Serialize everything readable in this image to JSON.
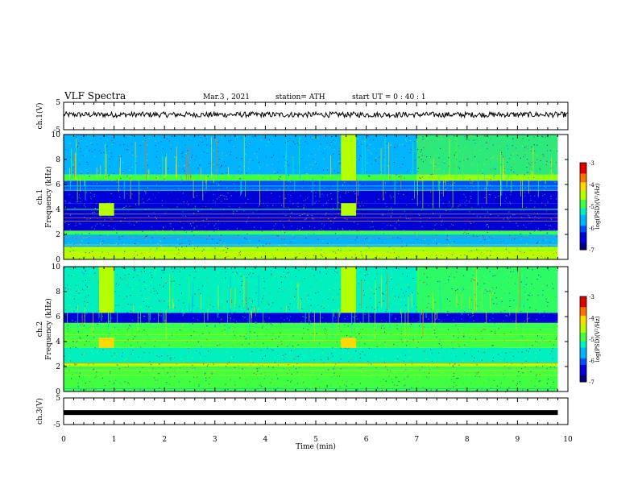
{
  "header": {
    "title": "VLF Spectra",
    "date": "Mar.3  , 2021",
    "station": "station= ATH",
    "start_ut": "start  UT  =   0 : 40 : 1"
  },
  "colors": {
    "spectrogram_palette": [
      "#00007a",
      "#0000d8",
      "#0050ff",
      "#00b4ff",
      "#00f0c0",
      "#40ff40",
      "#b4ff00",
      "#ffd800",
      "#ff7000",
      "#e00000",
      "#ffffff"
    ]
  },
  "chart_data": [
    {
      "type": "line",
      "panel": "ch1-voltage",
      "ylabel": "ch.1(V)",
      "ylim": [
        -5,
        5
      ],
      "yticks": [
        "5",
        "-5"
      ],
      "xlim": [
        0,
        10
      ],
      "description_values": {
        "baseline_v": 0.5,
        "noise_v": 1.0
      }
    },
    {
      "type": "heatmap",
      "panel": "ch1-spectrogram",
      "ylabel": "ch.1\nFrequency (kHz)",
      "ylim": [
        0,
        10
      ],
      "yticks": [
        "0",
        "2",
        "4",
        "6",
        "8",
        "10"
      ],
      "xlim": [
        0,
        10
      ],
      "colorbar": {
        "label": "log(PSD)(V²/Hz)",
        "range": [
          -7,
          -3
        ],
        "ticks": [
          "-3",
          "-4",
          "-5",
          "-6",
          "-7"
        ]
      },
      "bands_khz": [
        {
          "from": 0.0,
          "to": 1.0,
          "level": -4.6
        },
        {
          "from": 1.0,
          "to": 2.0,
          "level": -5.6
        },
        {
          "from": 2.0,
          "to": 2.3,
          "level": -5.0
        },
        {
          "from": 2.3,
          "to": 3.0,
          "level": -6.2
        },
        {
          "from": 3.0,
          "to": 4.5,
          "level": -6.6
        },
        {
          "from": 4.5,
          "to": 5.5,
          "level": -6.3
        },
        {
          "from": 5.5,
          "to": 6.3,
          "level": -6.0
        },
        {
          "from": 6.3,
          "to": 6.8,
          "level": -4.8
        },
        {
          "from": 6.8,
          "to": 10.0,
          "level": -5.5
        }
      ],
      "bursts": [
        {
          "t_start": 0.7,
          "t_end": 1.0,
          "f_low": 3.5,
          "f_high": 4.5,
          "level": -4.3
        },
        {
          "t_start": 5.5,
          "t_end": 5.8,
          "f_low": 3.5,
          "f_high": 4.5,
          "level": -4.3
        },
        {
          "t_start": 5.5,
          "t_end": 5.8,
          "f_low": 6.3,
          "f_high": 10.0,
          "level": -4.5
        }
      ],
      "enhancement_after_min": 7.0
    },
    {
      "type": "heatmap",
      "panel": "ch2-spectrogram",
      "ylabel": "ch.2\nFrequency (kHz)",
      "ylim": [
        0,
        10
      ],
      "yticks": [
        "0",
        "2",
        "4",
        "6",
        "8",
        "10"
      ],
      "xlim": [
        0,
        10
      ],
      "colorbar": {
        "label": "log(PSD)(V²/Hz)",
        "range": [
          -7,
          -3
        ],
        "ticks": [
          "-3",
          "-4",
          "-5",
          "-6",
          "-7"
        ]
      },
      "bands_khz": [
        {
          "from": 0.0,
          "to": 1.0,
          "level": -4.8
        },
        {
          "from": 1.0,
          "to": 2.0,
          "level": -5.0
        },
        {
          "from": 2.0,
          "to": 2.3,
          "level": -4.6
        },
        {
          "from": 2.3,
          "to": 3.5,
          "level": -5.2
        },
        {
          "from": 3.5,
          "to": 4.3,
          "level": -5.0
        },
        {
          "from": 4.3,
          "to": 5.5,
          "level": -5.0
        },
        {
          "from": 5.5,
          "to": 6.3,
          "level": -6.2
        },
        {
          "from": 6.3,
          "to": 10.0,
          "level": -5.2
        }
      ],
      "bursts": [
        {
          "t_start": 0.7,
          "t_end": 1.0,
          "f_low": 3.5,
          "f_high": 4.3,
          "level": -4.0
        },
        {
          "t_start": 5.5,
          "t_end": 5.8,
          "f_low": 3.5,
          "f_high": 4.3,
          "level": -4.0
        },
        {
          "t_start": 0.7,
          "t_end": 1.0,
          "f_low": 6.3,
          "f_high": 10.0,
          "level": -4.6
        },
        {
          "t_start": 5.5,
          "t_end": 5.8,
          "f_low": 6.3,
          "f_high": 10.0,
          "level": -4.6
        }
      ],
      "enhancement_after_min": 7.0
    },
    {
      "type": "line",
      "panel": "ch3-voltage",
      "ylabel": "ch.3(V)",
      "ylim": [
        -5,
        5
      ],
      "yticks": [
        "5",
        "-5"
      ],
      "xlim": [
        0,
        10
      ],
      "description_values": {
        "baseline_v": -0.5
      }
    }
  ],
  "xaxis": {
    "label": "Time  (min)",
    "ticks": [
      "0",
      "1",
      "2",
      "3",
      "4",
      "5",
      "6",
      "7",
      "8",
      "9",
      "10"
    ]
  }
}
